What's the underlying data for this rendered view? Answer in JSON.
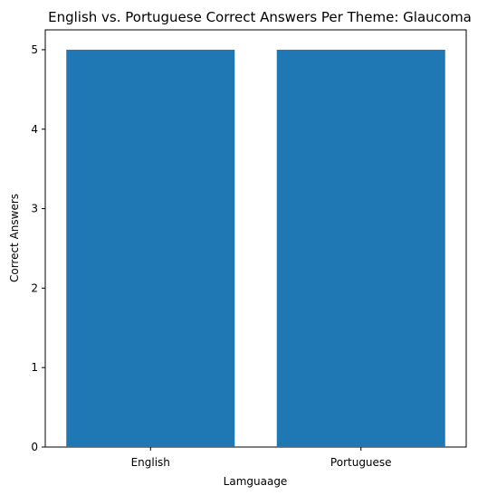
{
  "chart_data": {
    "type": "bar",
    "title": "English vs. Portuguese Correct Answers Per Theme: Glaucoma",
    "xlabel": "Lamguaage",
    "ylabel": "Correct Answers",
    "categories": [
      "English",
      "Portuguese"
    ],
    "values": [
      5,
      5
    ],
    "ylim": [
      0,
      5.25
    ],
    "yticks": [
      "0",
      "1",
      "2",
      "3",
      "4",
      "5"
    ],
    "grid": false,
    "bar_color": "#1f77b4"
  }
}
